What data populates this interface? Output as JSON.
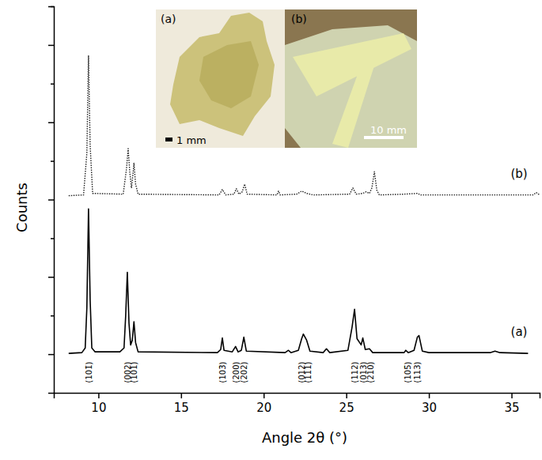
{
  "chart_data": {
    "type": "line",
    "x_label": "Angle 2θ (°)",
    "y_label": "Counts",
    "xlim": [
      7.3,
      36.7
    ],
    "xticks": [
      10,
      15,
      20,
      25,
      30,
      35
    ],
    "ylim": [
      -50,
      450
    ],
    "yticks": [
      0,
      50,
      100,
      150,
      200,
      250,
      300,
      350,
      400,
      450
    ],
    "tick_labels": "x",
    "grid": false,
    "series": [
      {
        "name": "(a)",
        "color": "#000000",
        "line_style": "solid",
        "x": [
          8.2,
          9.0,
          9.2,
          9.3,
          9.4,
          9.5,
          9.6,
          9.8,
          11.3,
          11.55,
          11.65,
          11.75,
          11.85,
          11.95,
          12.05,
          12.15,
          12.25,
          12.4,
          17.2,
          17.4,
          17.5,
          17.6,
          18.1,
          18.3,
          18.45,
          18.65,
          18.8,
          18.95,
          21.3,
          21.5,
          21.65,
          22.1,
          22.3,
          22.4,
          22.6,
          22.8,
          23.6,
          23.8,
          24.0,
          25.1,
          25.35,
          25.5,
          25.65,
          25.9,
          26.0,
          26.15,
          26.4,
          26.6,
          28.5,
          28.6,
          28.75,
          29.1,
          29.3,
          29.4,
          29.6,
          30.0,
          33.7,
          34.0,
          34.3,
          36.0
        ],
        "values": [
          1,
          2,
          8,
          60,
          188,
          70,
          8,
          3,
          3,
          8,
          50,
          106,
          40,
          12,
          18,
          42,
          15,
          3,
          2,
          6,
          21,
          5,
          3,
          10,
          3,
          5,
          22,
          4,
          2,
          5,
          2,
          5,
          20,
          26,
          18,
          4,
          2,
          7,
          2,
          5,
          35,
          58,
          20,
          12,
          21,
          6,
          7,
          2,
          2,
          5,
          2,
          5,
          22,
          24,
          4,
          2,
          2,
          4,
          2,
          1
        ]
      },
      {
        "name": "(b)",
        "color": "#222222",
        "line_style": "dotted",
        "x": [
          8.2,
          9.1,
          9.3,
          9.4,
          9.5,
          9.65,
          11.5,
          11.7,
          11.8,
          11.9,
          12.0,
          12.1,
          12.15,
          12.25,
          12.4,
          17.3,
          17.5,
          17.7,
          18.2,
          18.35,
          18.5,
          18.7,
          18.85,
          19.0,
          20.8,
          20.9,
          21.0,
          22.0,
          22.3,
          22.6,
          23.0,
          25.2,
          25.4,
          25.6,
          26.0,
          26.2,
          26.4,
          26.55,
          26.7,
          26.85,
          27.0,
          28.5,
          29.3,
          29.5,
          36.3,
          36.5,
          36.7
        ],
        "values": [
          205,
          206,
          260,
          386,
          270,
          208,
          207,
          240,
          266,
          235,
          215,
          235,
          247,
          220,
          207,
          206,
          213,
          206,
          207,
          214,
          207,
          210,
          220,
          207,
          206,
          211,
          206,
          207,
          211,
          208,
          206,
          207,
          215,
          207,
          208,
          210,
          208,
          215,
          236,
          212,
          206,
          207,
          208,
          206,
          206,
          209,
          206
        ]
      }
    ],
    "annotations": [
      {
        "text": "(101̄)",
        "x": 9.4
      },
      {
        "text": "(002)",
        "x": 11.75
      },
      {
        "text": "(101)",
        "x": 12.15
      },
      {
        "text": "(103̄)",
        "x": 17.5
      },
      {
        "text": "(200)",
        "x": 18.3
      },
      {
        "text": "(202)",
        "x": 18.8
      },
      {
        "text": "(012)",
        "x": 22.3
      },
      {
        "text": "(111)",
        "x": 22.65
      },
      {
        "text": "(112)",
        "x": 25.5
      },
      {
        "text": "(013)",
        "x": 26.0
      },
      {
        "text": "(210)",
        "x": 26.45
      },
      {
        "text": "(105̄)",
        "x": 28.7
      },
      {
        "text": "(113)",
        "x": 29.3
      }
    ]
  },
  "inset": {
    "panels": [
      {
        "label": "(a)",
        "scale": "1 mm"
      },
      {
        "label": "(b)",
        "scale": "10 mm"
      }
    ]
  }
}
